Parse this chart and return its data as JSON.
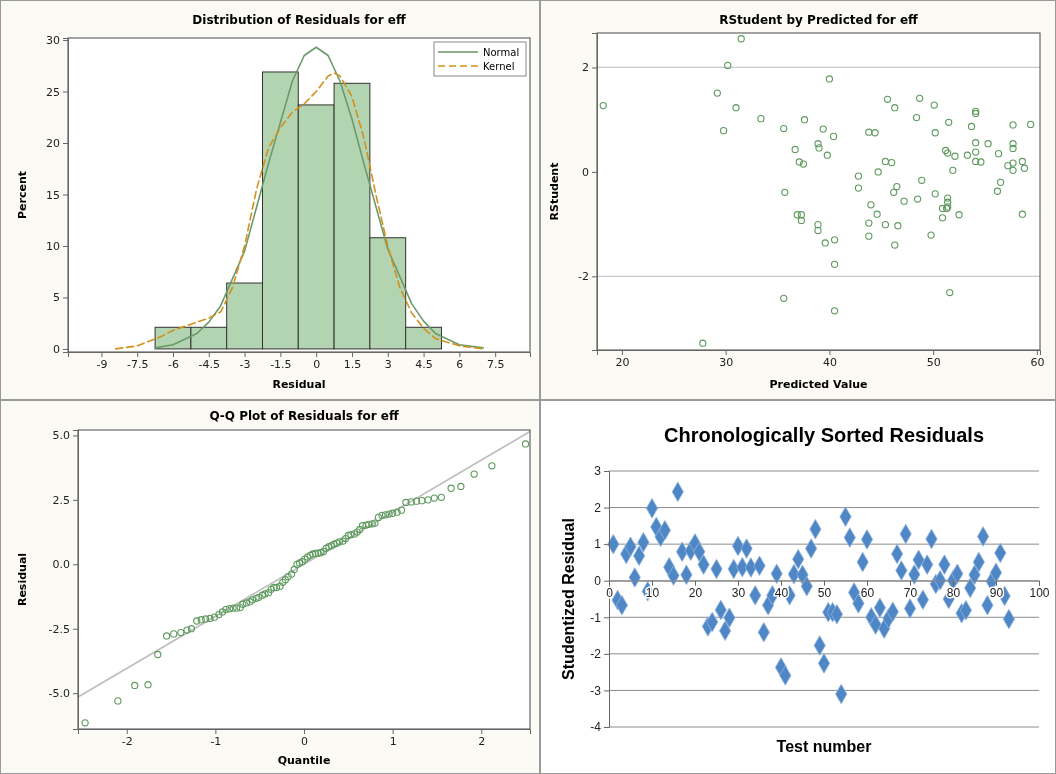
{
  "chart_data": [
    {
      "type": "histogram",
      "title": "Distribution of Residuals for eff",
      "xlabel": "Residual",
      "ylabel": "Percent",
      "bins": [
        -6.75,
        -5.25,
        -3.75,
        -2.25,
        -0.75,
        0.75,
        2.25,
        3.75,
        5.25
      ],
      "values": [
        2.1,
        2.1,
        6.4,
        26.9,
        23.7,
        25.8,
        10.8,
        2.1
      ],
      "color": "#b3d4b0",
      "series": [
        {
          "name": "Normal",
          "type": "line",
          "color": "#6a9a6a",
          "line_style": "solid",
          "x": [
            -6.75,
            -6,
            -5,
            -4.5,
            -4,
            -3,
            -2,
            -1.5,
            -1,
            -0.5,
            0,
            0.5,
            1,
            1.5,
            2,
            3,
            4,
            4.5,
            5,
            6,
            7
          ],
          "values": [
            0.1,
            0.4,
            1.5,
            2.6,
            4.2,
            9.5,
            18,
            22,
            26,
            28.5,
            29.3,
            28.5,
            26,
            22.3,
            18,
            9.7,
            4.4,
            2.7,
            1.5,
            0.4,
            0.1
          ]
        },
        {
          "name": "Kernel",
          "type": "line",
          "color": "#d4901a",
          "line_style": "dashed",
          "x": [
            -8.4,
            -7.5,
            -6.5,
            -6,
            -5.25,
            -4.5,
            -4,
            -3.5,
            -3,
            -2.5,
            -2,
            -1.5,
            -1,
            -0.5,
            0,
            0.5,
            0.75,
            1,
            1.5,
            2,
            2.5,
            3,
            3.5,
            4,
            4.5,
            5,
            6,
            7
          ],
          "values": [
            0,
            0.3,
            1.2,
            1.8,
            2.4,
            3,
            3.6,
            6,
            10,
            15.5,
            19.5,
            21.5,
            23,
            23.8,
            25,
            26.5,
            26.8,
            26.5,
            24.5,
            20.5,
            15,
            10,
            6,
            3.5,
            2,
            1,
            0.3,
            0
          ]
        }
      ],
      "xlim": [
        -10.4,
        8.96
      ],
      "ylim": [
        -0.3,
        30.2
      ],
      "xticks": [
        -9,
        -7.5,
        -6,
        -4.5,
        -3,
        -1.5,
        0,
        1.5,
        3,
        4.5,
        6,
        7.5
      ],
      "yticks": [
        0,
        5,
        10,
        15,
        20,
        25,
        30
      ],
      "legend": "top right",
      "grid": false
    },
    {
      "type": "scatter",
      "title": "RStudent by Predicted for eff",
      "xlabel": "Predicted Value",
      "ylabel": "RStudent",
      "color": "#5e9a5e",
      "marker": "circle",
      "x": [
        18.2,
        31.5,
        30.2,
        29.2,
        31.0,
        29.8,
        33.4,
        27.8,
        35.6,
        35.7,
        35.6,
        36.7,
        37.6,
        37.1,
        37.5,
        36.9,
        37.3,
        37.3,
        38.9,
        39.0,
        39.4,
        39.8,
        40.0,
        40.4,
        38.9,
        38.9,
        39.6,
        40.5,
        40.5,
        40.5,
        42.8,
        42.8,
        43.8,
        44.4,
        44.7,
        44.0,
        44.6,
        43.8,
        43.8,
        45.6,
        46.3,
        45.4,
        46.0,
        46.5,
        46.2,
        47.2,
        45.4,
        46.6,
        46.3,
        48.7,
        48.4,
        48.9,
        48.5,
        50.1,
        50.2,
        50.2,
        49.8,
        51.5,
        51.2,
        51.4,
        52.1,
        51.9,
        51.4,
        51.4,
        51.4,
        50.9,
        51.3,
        50.9,
        52.5,
        51.6,
        53.7,
        53.3,
        54.1,
        54.1,
        54.1,
        54.1,
        54.1,
        54.6,
        55.3,
        56.3,
        56.5,
        56.2,
        57.7,
        57.7,
        57.7,
        57.2,
        57.7,
        57.7,
        58.6,
        58.8,
        59.4,
        58.6
      ],
      "values": [
        1.27,
        2.55,
        2.04,
        1.51,
        1.23,
        0.79,
        1.02,
        -3.28,
        0.83,
        -0.39,
        -2.42,
        0.43,
        1.0,
        0.19,
        0.15,
        -0.82,
        -0.82,
        -0.93,
        0.54,
        0.46,
        0.82,
        0.32,
        1.78,
        0.68,
        -1.01,
        -1.12,
        -1.36,
        -1.3,
        -1.77,
        -2.66,
        -0.08,
        -0.31,
        0.76,
        0.75,
        0.0,
        -0.63,
        -0.81,
        -0.98,
        -1.23,
        1.39,
        1.23,
        0.2,
        0.18,
        -0.28,
        -0.39,
        -0.56,
        -1.01,
        -1.03,
        -1.4,
        1.41,
        1.04,
        -0.16,
        -0.52,
        1.28,
        0.75,
        -0.42,
        -1.21,
        0.95,
        0.41,
        0.36,
        0.3,
        0.03,
        -0.5,
        -0.58,
        -0.67,
        -0.7,
        -0.7,
        -0.88,
        -0.82,
        -2.31,
        0.87,
        0.32,
        1.16,
        1.12,
        0.56,
        0.38,
        0.2,
        0.19,
        0.54,
        0.35,
        -0.2,
        -0.37,
        0.9,
        0.54,
        0.45,
        0.12,
        0.17,
        0.03,
        0.2,
        0.07,
        0.91,
        -0.81
      ],
      "xlim": [
        17.6,
        60.3
      ],
      "ylim": [
        -3.41,
        2.66
      ],
      "xticks": [
        20,
        30,
        40,
        50,
        60
      ],
      "yticks": [
        -2,
        0,
        2
      ],
      "grid": false,
      "ref_lines": [
        {
          "axis": "y",
          "value": 2,
          "color": "#c8c8c8"
        },
        {
          "axis": "y",
          "value": -2,
          "color": "#c8c8c8"
        }
      ]
    },
    {
      "type": "scatter",
      "title": "Q-Q Plot of Residuals for eff",
      "xlabel": "Quantile",
      "ylabel": "Residual",
      "series": [
        {
          "type": "line",
          "marker": "none",
          "color": "#bdbdbd",
          "x": [
            -2.55,
            2.55
          ],
          "values": [
            -5.15,
            5.15
          ]
        },
        {
          "type": "scatter",
          "marker": "circle",
          "color": "#5e9a5e",
          "x": [
            -2.47,
            -2.1,
            -1.91,
            -1.76,
            -1.65,
            -1.55,
            -1.47,
            -1.39,
            -1.32,
            -1.27,
            -1.21,
            -1.16,
            -1.11,
            -1.06,
            -1.01,
            -0.96,
            -0.92,
            -0.88,
            -0.84,
            -0.8,
            -0.76,
            -0.72,
            -0.69,
            -0.65,
            -0.61,
            -0.58,
            -0.54,
            -0.51,
            -0.47,
            -0.44,
            -0.4,
            -0.37,
            -0.34,
            -0.31,
            -0.27,
            -0.24,
            -0.21,
            -0.18,
            -0.14,
            -0.11,
            -0.08,
            -0.05,
            -0.02,
            0.01,
            0.04,
            0.07,
            0.1,
            0.13,
            0.16,
            0.19,
            0.22,
            0.25,
            0.28,
            0.31,
            0.34,
            0.37,
            0.4,
            0.44,
            0.47,
            0.5,
            0.53,
            0.57,
            0.6,
            0.63,
            0.66,
            0.7,
            0.73,
            0.77,
            0.8,
            0.84,
            0.88,
            0.92,
            0.96,
            1.0,
            1.05,
            1.1,
            1.15,
            1.21,
            1.27,
            1.33,
            1.4,
            1.47,
            1.55,
            1.66,
            1.77,
            1.92,
            2.12,
            2.5
          ],
          "values": [
            -6.15,
            -5.3,
            -4.7,
            -4.67,
            -3.5,
            -2.78,
            -2.7,
            -2.65,
            -2.55,
            -2.5,
            -2.2,
            -2.15,
            -2.12,
            -2.1,
            -2.05,
            -1.95,
            -1.85,
            -1.75,
            -1.72,
            -1.7,
            -1.7,
            -1.68,
            -1.55,
            -1.5,
            -1.45,
            -1.38,
            -1.32,
            -1.28,
            -1.2,
            -1.15,
            -1.1,
            -0.97,
            -0.9,
            -0.9,
            -0.85,
            -0.7,
            -0.6,
            -0.48,
            -0.38,
            -0.2,
            0.0,
            0.05,
            0.1,
            0.2,
            0.28,
            0.35,
            0.4,
            0.42,
            0.43,
            0.45,
            0.5,
            0.62,
            0.68,
            0.72,
            0.78,
            0.82,
            0.87,
            0.9,
            1.0,
            1.12,
            1.15,
            1.18,
            1.25,
            1.35,
            1.5,
            1.52,
            1.55,
            1.57,
            1.6,
            1.82,
            1.9,
            1.92,
            1.95,
            1.98,
            2.02,
            2.1,
            2.4,
            2.42,
            2.45,
            2.47,
            2.5,
            2.57,
            2.6,
            2.95,
            3.02,
            3.5,
            3.82,
            4.67
          ]
        }
      ],
      "xlim": [
        -2.55,
        2.55
      ],
      "ylim": [
        -6.39,
        5.21
      ],
      "xticks": [
        -2,
        -1,
        0,
        1,
        2
      ],
      "yticks": [
        {
          "value": -5,
          "label": "-5.0"
        },
        {
          "value": -2.5,
          "label": "-2.5"
        },
        {
          "value": 0,
          "label": "0.0"
        },
        {
          "value": 2.5,
          "label": "2.5"
        },
        {
          "value": 5,
          "label": "5.0"
        }
      ],
      "grid": false
    },
    {
      "type": "scatter",
      "title": "Chronologically Sorted Residuals",
      "xlabel": "Test number",
      "ylabel": "Studentized Residual",
      "color": "#4f86c6",
      "marker": "diamond",
      "x": [
        1,
        2,
        3,
        4,
        5,
        6,
        7,
        8,
        9,
        10,
        11,
        12,
        13,
        14,
        15,
        16,
        17,
        18,
        19,
        20,
        21,
        22,
        23,
        24,
        25,
        26,
        27,
        28,
        29,
        30,
        31,
        32,
        33,
        34,
        35,
        36,
        37,
        38,
        39,
        40,
        41,
        42,
        43,
        44,
        45,
        46,
        47,
        48,
        49,
        50,
        51,
        52,
        53,
        54,
        55,
        56,
        57,
        58,
        59,
        60,
        61,
        62,
        63,
        64,
        65,
        66,
        67,
        68,
        69,
        70,
        71,
        72,
        73,
        74,
        75,
        76,
        77,
        78,
        79,
        80,
        81,
        82,
        83,
        84,
        85,
        86,
        87,
        88,
        89,
        90,
        91,
        92,
        93
      ],
      "values": [
        1.0,
        -0.53,
        -0.67,
        0.73,
        0.93,
        0.09,
        0.68,
        1.05,
        -0.29,
        1.98,
        1.47,
        1.2,
        1.38,
        0.37,
        0.14,
        2.43,
        0.79,
        0.16,
        0.82,
        1.02,
        0.79,
        0.44,
        -1.25,
        -1.13,
        0.32,
        -0.8,
        -1.37,
        -1.01,
        0.32,
        0.95,
        0.37,
        0.88,
        0.36,
        -0.4,
        0.41,
        -1.41,
        -0.67,
        -0.4,
        0.19,
        -2.37,
        -2.59,
        -0.4,
        0.18,
        0.59,
        0.16,
        -0.15,
        0.88,
        1.41,
        -1.77,
        -2.26,
        -0.86,
        -0.86,
        -0.92,
        -3.1,
        1.75,
        1.18,
        -0.32,
        -0.62,
        0.51,
        1.13,
        -1.0,
        -1.2,
        -0.74,
        -1.31,
        -1.03,
        -0.85,
        0.73,
        0.28,
        1.28,
        -0.76,
        0.17,
        0.57,
        -0.52,
        0.44,
        1.14,
        -0.09,
        0.01,
        0.44,
        -0.5,
        0.01,
        0.19,
        -0.89,
        -0.81,
        -0.2,
        0.16,
        0.51,
        1.21,
        -0.67,
        -0.02,
        0.22,
        0.76,
        -0.42,
        -1.05
      ],
      "xlim": [
        0,
        100
      ],
      "ylim": [
        -4,
        3
      ],
      "xticks": [
        0,
        10,
        20,
        30,
        40,
        50,
        60,
        70,
        80,
        90,
        100
      ],
      "yticks": [
        -4,
        -3,
        -2,
        -1,
        0,
        1,
        2,
        3
      ],
      "grid": "y"
    }
  ]
}
